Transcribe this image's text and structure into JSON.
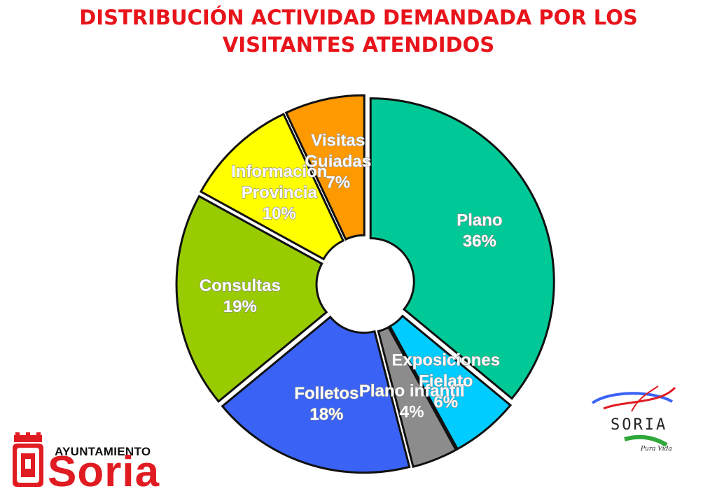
{
  "title": {
    "line1": "DISTRIBUCIÓN ACTIVIDAD DEMANDADA POR LOS",
    "line2": "VISITANTES ATENDIDOS"
  },
  "chart_data": {
    "type": "pie",
    "donut": true,
    "title": "DISTRIBUCIÓN ACTIVIDAD DEMANDADA POR LOS VISITANTES ATENDIDOS",
    "exploded": true,
    "slices": [
      {
        "label_lines": [
          "Plano"
        ],
        "label": "Plano",
        "value": 36,
        "value_label": "36%",
        "color": "#00c896"
      },
      {
        "label_lines": [
          "Exposiciones",
          "Fielato"
        ],
        "label": "Exposiciones Fielato",
        "value": 6,
        "value_label": "6%",
        "color": "#00ccff"
      },
      {
        "label_lines": [
          "Plano infantil"
        ],
        "label": "Plano infantil",
        "value": 4,
        "value_label": "4%",
        "color": "#8c8c8c"
      },
      {
        "label_lines": [
          "Folletos"
        ],
        "label": "Folletos",
        "value": 18,
        "value_label": "18%",
        "color": "#3a63f6"
      },
      {
        "label_lines": [
          "Consultas"
        ],
        "label": "Consultas",
        "value": 19,
        "value_label": "19%",
        "color": "#99cc00"
      },
      {
        "label_lines": [
          "Información",
          "Provincia"
        ],
        "label": "Información Provincia",
        "value": 10,
        "value_label": "10%",
        "color": "#ffff00"
      },
      {
        "label_lines": [
          "Visitas",
          "Guiadas"
        ],
        "label": "Visitas Guiadas",
        "value": 7,
        "value_label": "7%",
        "color": "#ff9900"
      }
    ]
  },
  "logos": {
    "left": {
      "small_text": "AYUNTAMIENTO",
      "large_text": "Soria",
      "colors": {
        "red": "#e01b22"
      }
    },
    "right": {
      "name": "SORIA",
      "tagline": "Pura Vida"
    }
  }
}
